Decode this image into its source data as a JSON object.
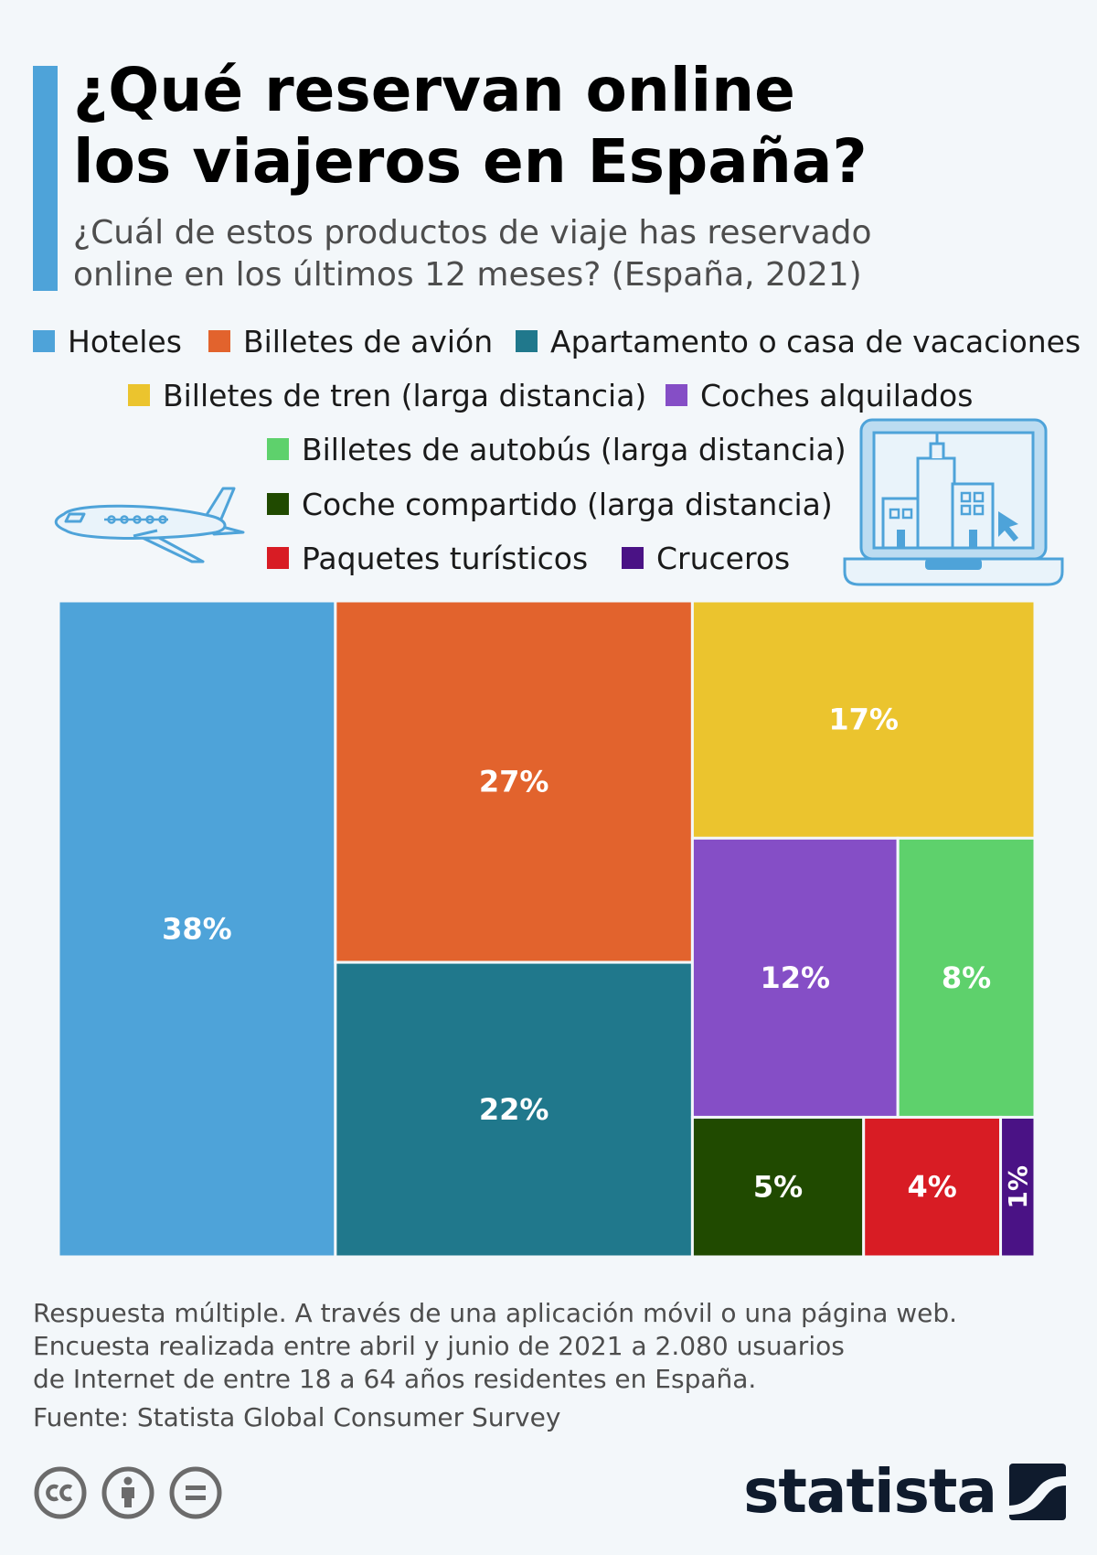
{
  "header": {
    "title_line1": "¿Qué reservan online",
    "title_line2": "los viajeros en España?",
    "subtitle_line1": "¿Cuál de estos productos de viaje has reservado",
    "subtitle_line2": "online en los últimos 12 meses? (España, 2021)"
  },
  "chart_data": {
    "type": "treemap",
    "unit": "%",
    "items": [
      {
        "label": "Hoteles",
        "value": 38,
        "value_label": "38%",
        "color": "#4ea3d9"
      },
      {
        "label": "Billetes de avión",
        "value": 27,
        "value_label": "27%",
        "color": "#e2632d"
      },
      {
        "label": "Apartamento o casa de vacaciones",
        "value": 22,
        "value_label": "22%",
        "color": "#20788c"
      },
      {
        "label": "Billetes de tren (larga distancia)",
        "value": 17,
        "value_label": "17%",
        "color": "#ebc42e"
      },
      {
        "label": "Coches alquilados",
        "value": 12,
        "value_label": "12%",
        "color": "#854ec6"
      },
      {
        "label": "Billetes de autobús (larga distancia)",
        "value": 8,
        "value_label": "8%",
        "color": "#5ed16c"
      },
      {
        "label": "Coche compartido (larga distancia)",
        "value": 5,
        "value_label": "5%",
        "color": "#204a00"
      },
      {
        "label": "Paquetes turísticos",
        "value": 4,
        "value_label": "4%",
        "color": "#d81c24"
      },
      {
        "label": "Cruceros",
        "value": 1,
        "value_label": "1%",
        "color": "#4a1285"
      }
    ],
    "legend_position": "top"
  },
  "footer": {
    "note_line1": "Respuesta múltiple. A través de una aplicación móvil o una página web.",
    "note_line2": "Encuesta realizada entre abril y junio de 2021 a 2.080 usuarios",
    "note_line3": "de Internet de entre 18 a 64 años residentes en España.",
    "source": "Fuente: Statista Global Consumer Survey",
    "brand": "statista"
  },
  "icons": [
    "airplane-icon",
    "laptop-city-icon",
    "cc-icon",
    "attribution-icon",
    "no-derivatives-icon",
    "statista-logo-icon"
  ]
}
